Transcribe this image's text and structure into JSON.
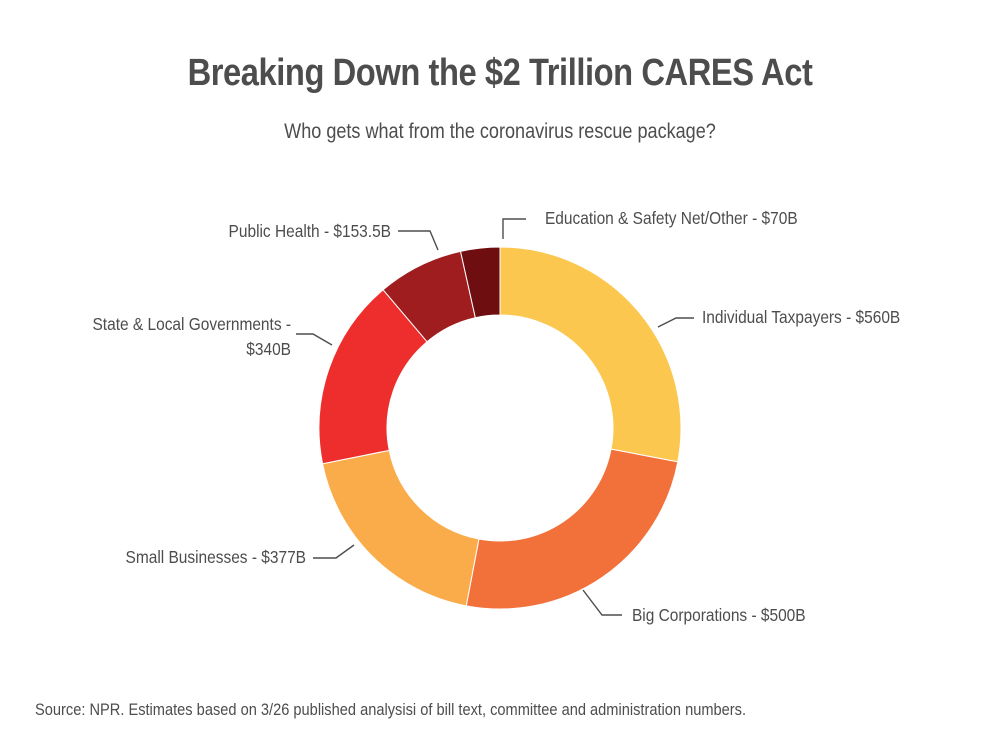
{
  "header": {
    "title": "Breaking Down the $2 Trillion CARES Act",
    "subtitle": "Who gets what from the coronavirus rescue package?"
  },
  "footer": {
    "source": "Source: NPR. Estimates based on 3/26 published analysisi of bill text, committee and administration numbers."
  },
  "chart_data": {
    "type": "pie",
    "variant": "donut",
    "title": "Breaking Down the $2 Trillion CARES Act",
    "subtitle": "Who gets what from the coronavirus rescue package?",
    "legend": "none",
    "slices": [
      {
        "label_lines": [
          "Individual Taxpayers - $560B"
        ],
        "value": 560,
        "color": "#fbc74f"
      },
      {
        "label_lines": [
          "Big Corporations - $500B"
        ],
        "value": 500,
        "color": "#f2703a"
      },
      {
        "label_lines": [
          "Small Businesses - $377B"
        ],
        "value": 377,
        "color": "#fbac4a"
      },
      {
        "label_lines": [
          "State & Local Governments -",
          "$340B"
        ],
        "value": 340,
        "color": "#ee2d2d"
      },
      {
        "label_lines": [
          "Public Health - $153.5B"
        ],
        "value": 153.5,
        "color": "#9f1c1f"
      },
      {
        "label_lines": [
          "Education & Safety Net/Other - $70B"
        ],
        "value": 70,
        "color": "#6f0e11"
      }
    ]
  }
}
